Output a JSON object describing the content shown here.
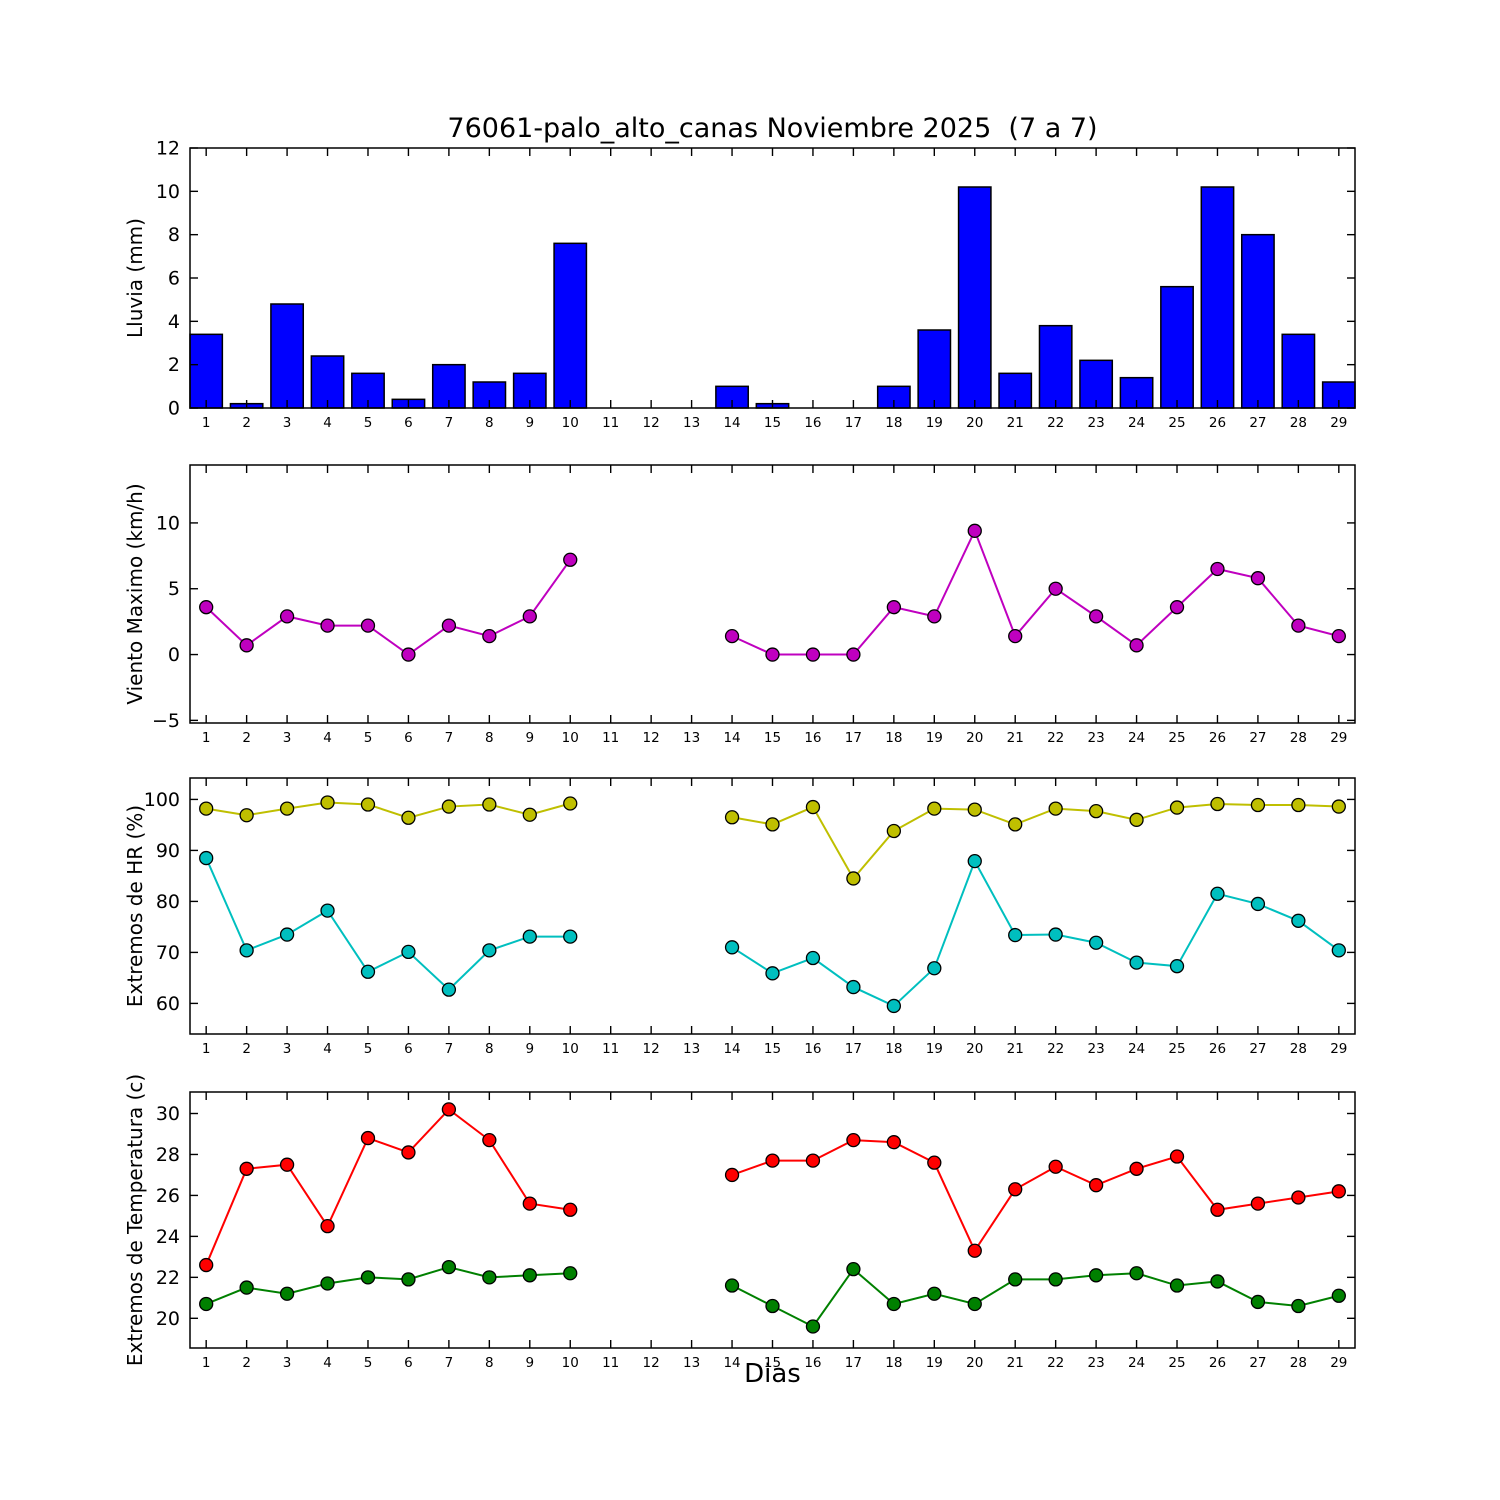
{
  "figure": {
    "background": "#ffffff",
    "frame_color": "#000000"
  },
  "chart_data": [
    {
      "type": "bar",
      "name": "lluvia",
      "title": "76061-palo_alto_canas Noviembre 2025  (7 a 7)",
      "ylabel": "Lluvia (mm)",
      "ylim": [
        0,
        12
      ],
      "yticks": [
        0,
        2,
        4,
        6,
        8,
        10,
        12
      ],
      "grid": false,
      "bar_color": "#0000ff",
      "categories": [
        1,
        2,
        3,
        4,
        5,
        6,
        7,
        8,
        9,
        10,
        11,
        12,
        13,
        14,
        15,
        16,
        17,
        18,
        19,
        20,
        21,
        22,
        23,
        24,
        25,
        26,
        27,
        28,
        29
      ],
      "values": [
        3.4,
        0.2,
        4.8,
        2.4,
        1.6,
        0.4,
        2.0,
        1.2,
        1.6,
        7.6,
        0.0,
        0.0,
        0.0,
        1.0,
        0.2,
        0.0,
        0.0,
        1.0,
        3.6,
        10.2,
        1.6,
        3.8,
        2.2,
        1.4,
        5.6,
        10.2,
        8.0,
        3.4,
        1.2
      ]
    },
    {
      "type": "line",
      "name": "viento-maximo",
      "ylabel": "Viento Maximo (km/h)",
      "ylim": [
        -5.2,
        14.4
      ],
      "yticks": [
        -5,
        0,
        5,
        10
      ],
      "grid": false,
      "categories": [
        1,
        2,
        3,
        4,
        5,
        6,
        7,
        8,
        9,
        10,
        11,
        12,
        13,
        14,
        15,
        16,
        17,
        18,
        19,
        20,
        21,
        22,
        23,
        24,
        25,
        26,
        27,
        28,
        29
      ],
      "series": [
        {
          "name": "viento_maximo",
          "color": "#bf00bf",
          "values": [
            3.6,
            0.7,
            2.9,
            2.2,
            2.2,
            0.0,
            2.2,
            1.4,
            2.9,
            7.2,
            null,
            null,
            null,
            1.4,
            0.0,
            0.0,
            0.0,
            3.6,
            2.9,
            9.4,
            1.4,
            5.0,
            2.9,
            0.7,
            3.6,
            6.5,
            5.8,
            2.2,
            1.4
          ]
        }
      ]
    },
    {
      "type": "line",
      "name": "extremos-hr",
      "ylabel": "Extremos de HR (%)",
      "ylim": [
        54,
        104.2
      ],
      "yticks": [
        60,
        70,
        80,
        90,
        100
      ],
      "grid": false,
      "categories": [
        1,
        2,
        3,
        4,
        5,
        6,
        7,
        8,
        9,
        10,
        11,
        12,
        13,
        14,
        15,
        16,
        17,
        18,
        19,
        20,
        21,
        22,
        23,
        24,
        25,
        26,
        27,
        28,
        29
      ],
      "series": [
        {
          "name": "hr_maximo",
          "color": "#bfbf00",
          "values": [
            98.2,
            96.9,
            98.2,
            99.4,
            99.0,
            96.4,
            98.6,
            99.0,
            97.0,
            99.2,
            null,
            null,
            null,
            96.5,
            95.1,
            98.5,
            84.5,
            93.8,
            98.2,
            98.0,
            95.1,
            98.2,
            97.7,
            96.0,
            98.4,
            99.1,
            98.9,
            98.9,
            98.6
          ]
        },
        {
          "name": "hr_minimo",
          "color": "#00bfbf",
          "values": [
            88.5,
            70.4,
            73.5,
            78.2,
            66.2,
            70.1,
            62.7,
            70.4,
            73.1,
            73.1,
            null,
            null,
            null,
            71.0,
            65.9,
            68.9,
            63.2,
            59.5,
            66.9,
            87.9,
            73.4,
            73.5,
            71.9,
            68.0,
            67.3,
            81.5,
            79.5,
            76.2,
            70.4
          ]
        }
      ]
    },
    {
      "type": "line",
      "name": "extremos-temperatura",
      "ylabel": "Extremos de Temperatura (c)",
      "xlabel": "Dias",
      "ylim": [
        18.55,
        31.05
      ],
      "yticks": [
        20,
        22,
        24,
        26,
        28,
        30
      ],
      "grid": false,
      "categories": [
        1,
        2,
        3,
        4,
        5,
        6,
        7,
        8,
        9,
        10,
        11,
        12,
        13,
        14,
        15,
        16,
        17,
        18,
        19,
        20,
        21,
        22,
        23,
        24,
        25,
        26,
        27,
        28,
        29
      ],
      "series": [
        {
          "name": "temp_maxima",
          "color": "#ff0000",
          "values": [
            22.6,
            27.3,
            27.5,
            24.5,
            28.8,
            28.1,
            30.2,
            28.7,
            25.6,
            25.3,
            null,
            null,
            null,
            27.0,
            27.7,
            27.7,
            28.7,
            28.6,
            27.6,
            23.3,
            26.3,
            27.4,
            26.5,
            27.3,
            27.9,
            25.3,
            25.6,
            25.9,
            26.2
          ]
        },
        {
          "name": "temp_minima",
          "color": "#008000",
          "values": [
            20.7,
            21.5,
            21.2,
            21.7,
            22.0,
            21.9,
            22.5,
            22.0,
            22.1,
            22.2,
            null,
            null,
            null,
            21.6,
            20.6,
            19.6,
            22.4,
            20.7,
            21.2,
            20.7,
            21.9,
            21.9,
            22.1,
            22.2,
            21.6,
            21.8,
            20.8,
            20.6,
            21.1
          ]
        }
      ]
    }
  ]
}
